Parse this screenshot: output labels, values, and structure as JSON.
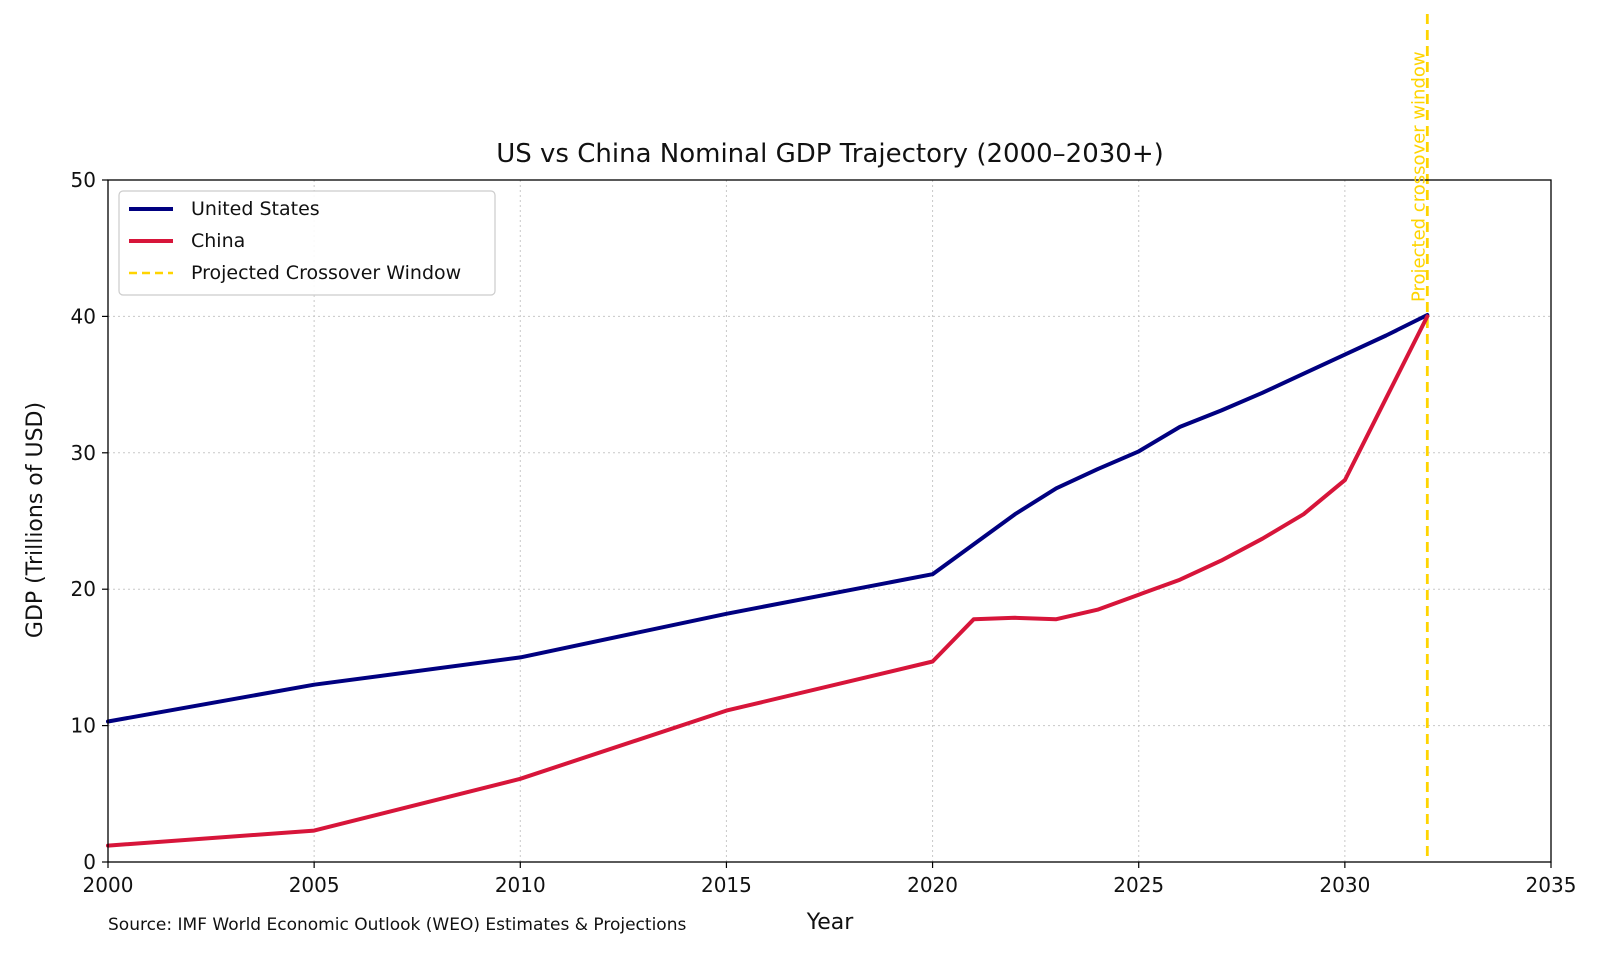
{
  "chart_data": {
    "type": "line",
    "title": "US vs China Nominal GDP Trajectory (2000–2030+)",
    "xlabel": "Year",
    "ylabel": "GDP (Trillions of USD)",
    "xlim": [
      2000,
      2035
    ],
    "ylim": [
      0,
      50
    ],
    "xticks": [
      2000,
      2005,
      2010,
      2015,
      2020,
      2025,
      2030,
      2035
    ],
    "yticks": [
      0,
      10,
      20,
      30,
      40,
      50
    ],
    "grid": true,
    "legend_position": "top-left",
    "series": [
      {
        "name": "United States",
        "color": "#000080",
        "x": [
          2000,
          2005,
          2010,
          2015,
          2020,
          2021,
          2022,
          2023,
          2024,
          2025,
          2026,
          2027,
          2028,
          2029,
          2030,
          2031,
          2032
        ],
        "values": [
          10.3,
          13.0,
          15.0,
          18.2,
          21.1,
          23.3,
          25.5,
          27.4,
          28.8,
          30.1,
          31.9,
          33.1,
          34.4,
          35.8,
          37.2,
          38.6,
          40.1
        ]
      },
      {
        "name": "China",
        "color": "#d7153a",
        "x": [
          2000,
          2005,
          2010,
          2015,
          2020,
          2021,
          2022,
          2023,
          2024,
          2025,
          2026,
          2027,
          2028,
          2029,
          2030,
          2031,
          2032
        ],
        "values": [
          1.2,
          2.3,
          6.1,
          11.1,
          14.7,
          17.8,
          17.9,
          17.8,
          18.5,
          19.6,
          20.7,
          22.1,
          23.7,
          25.5,
          28.0,
          34.0,
          40.0
        ]
      }
    ],
    "crossover": {
      "name": "Projected Crossover Window",
      "x": 2032,
      "color": "#ffd400",
      "annotation": "Projected crossover window"
    },
    "source": "Source: IMF World Economic Outlook (WEO) Estimates & Projections"
  }
}
